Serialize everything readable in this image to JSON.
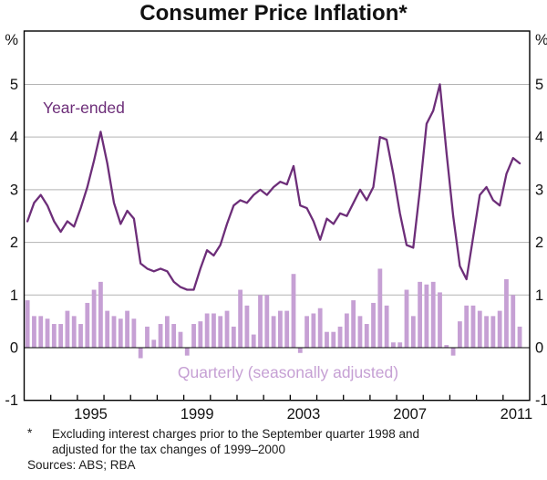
{
  "title": "Consumer Price Inflation*",
  "axes": {
    "unit_left": "%",
    "unit_right": "%",
    "y_ticks": [
      5,
      4,
      3,
      2,
      1,
      0,
      -1
    ],
    "x_tick_years": [
      1995,
      1999,
      2003,
      2007,
      2011
    ],
    "ylim": [
      -1,
      6
    ]
  },
  "series_labels": {
    "line": "Year-ended",
    "bars": "Quarterly (seasonally adjusted)"
  },
  "footnote": {
    "marker": "*",
    "line1": "Excluding interest charges prior to the September quarter 1998 and",
    "line2": "adjusted for the tax changes of 1999–2000",
    "sources": "Sources: ABS; RBA"
  },
  "colors": {
    "line": "#6d2e79",
    "bars": "#c6a0d4",
    "grid": "#b3b3b3",
    "axis": "#000000",
    "zero_line": "#000000"
  },
  "chart_data": {
    "type": "bar+line",
    "x_start": "1993Q1",
    "x_end": "2011Q3",
    "frequency": "quarterly",
    "x_axis_span_years": [
      1993,
      2012
    ],
    "grid": true,
    "series": [
      {
        "name": "Year-ended",
        "type": "line",
        "values": [
          2.4,
          2.75,
          2.9,
          2.7,
          2.4,
          2.2,
          2.4,
          2.3,
          2.65,
          3.05,
          3.55,
          4.1,
          3.5,
          2.75,
          2.35,
          2.6,
          2.45,
          1.6,
          1.5,
          1.45,
          1.5,
          1.45,
          1.25,
          1.15,
          1.1,
          1.1,
          1.5,
          1.85,
          1.75,
          1.95,
          2.35,
          2.7,
          2.8,
          2.75,
          2.9,
          3.0,
          2.9,
          3.05,
          3.15,
          3.1,
          3.45,
          2.7,
          2.65,
          2.4,
          2.05,
          2.45,
          2.35,
          2.55,
          2.5,
          2.75,
          3.0,
          2.8,
          3.05,
          4.0,
          3.95,
          3.3,
          2.55,
          1.95,
          1.9,
          3.0,
          4.25,
          4.5,
          5.0,
          3.7,
          2.5,
          1.55,
          1.3,
          2.1,
          2.9,
          3.05,
          2.8,
          2.7,
          3.3,
          3.6,
          3.5
        ]
      },
      {
        "name": "Quarterly (seasonally adjusted)",
        "type": "bar",
        "values": [
          0.9,
          0.6,
          0.6,
          0.55,
          0.45,
          0.45,
          0.7,
          0.6,
          0.45,
          0.85,
          1.1,
          1.25,
          0.7,
          0.6,
          0.55,
          0.7,
          0.55,
          -0.2,
          0.4,
          0.15,
          0.45,
          0.6,
          0.45,
          0.3,
          -0.15,
          0.45,
          0.5,
          0.65,
          0.65,
          0.6,
          0.7,
          0.4,
          1.1,
          0.8,
          0.25,
          1.0,
          1.0,
          0.6,
          0.7,
          0.7,
          1.4,
          -0.1,
          0.6,
          0.65,
          0.75,
          0.3,
          0.3,
          0.4,
          0.65,
          0.9,
          0.6,
          0.45,
          0.85,
          1.5,
          0.8,
          0.1,
          0.1,
          1.1,
          0.6,
          1.25,
          1.2,
          1.25,
          1.05,
          0.05,
          -0.15,
          0.5,
          0.8,
          0.8,
          0.7,
          0.6,
          0.6,
          0.7,
          1.3,
          1.0,
          0.4
        ]
      }
    ]
  }
}
